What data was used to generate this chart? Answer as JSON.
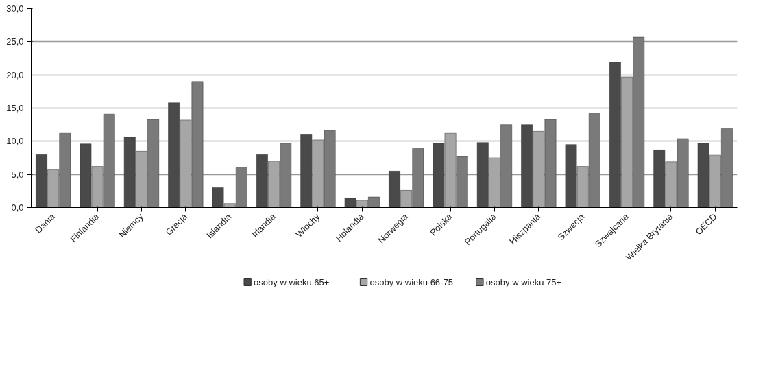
{
  "chart_data": {
    "type": "bar",
    "categories": [
      "Dania",
      "Finlandia",
      "Niemcy",
      "Grecja",
      "Islandia",
      "Irlandia",
      "Włochy",
      "Holandia",
      "Norwegia",
      "Polska",
      "Portugalia",
      "Hiszpania",
      "Szwecja",
      "Szwajcaria",
      "Wielka Brytania",
      "OECD"
    ],
    "series": [
      {
        "name": "osoby w wieku 65+",
        "color": "#4a4a4a",
        "values": [
          8.0,
          9.6,
          10.6,
          15.8,
          3.0,
          8.0,
          11.0,
          1.4,
          5.5,
          9.7,
          9.8,
          12.5,
          9.5,
          21.9,
          8.7,
          9.7
        ]
      },
      {
        "name": "osoby w wieku 66-75",
        "color": "#a6a6a6",
        "values": [
          5.7,
          6.2,
          8.5,
          13.2,
          0.6,
          7.0,
          10.2,
          1.1,
          2.6,
          11.2,
          7.5,
          11.5,
          6.2,
          19.7,
          6.9,
          7.9
        ]
      },
      {
        "name": "osoby w wieku 75+",
        "color": "#7a7a7a",
        "values": [
          11.2,
          14.1,
          13.3,
          19.0,
          6.0,
          9.7,
          11.6,
          1.6,
          8.9,
          7.7,
          12.5,
          13.3,
          14.2,
          25.7,
          10.4,
          11.9
        ]
      }
    ],
    "ylim": [
      0,
      30
    ],
    "yticks": [
      {
        "value": 0,
        "label": "0,0"
      },
      {
        "value": 5,
        "label": "5,0"
      },
      {
        "value": 10,
        "label": "10,0"
      },
      {
        "value": 15,
        "label": "15,0"
      },
      {
        "value": 20,
        "label": "20,0"
      },
      {
        "value": 25,
        "label": "25,0"
      },
      {
        "value": 30,
        "label": "30,0"
      }
    ],
    "grid": "y",
    "legend": "bottom"
  }
}
